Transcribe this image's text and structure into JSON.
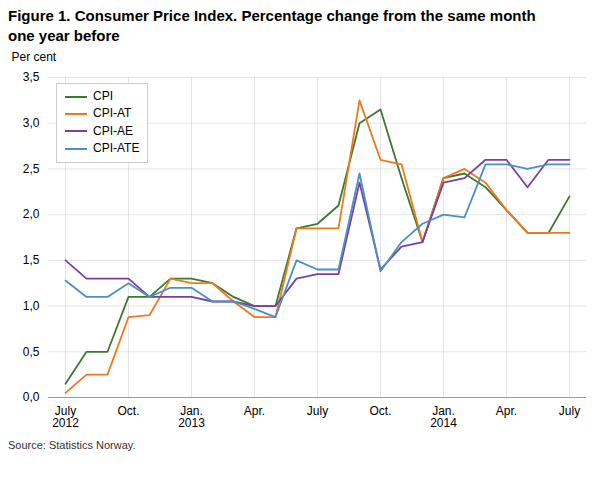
{
  "chart_data": {
    "type": "line",
    "title": "Figure 1. Consumer Price Index. Percentage change from the same month\none year before",
    "ylabel": "Per cent",
    "source": "Source: Statistics Norway.",
    "categories": [
      "July\n2012",
      null,
      null,
      "Oct.",
      null,
      null,
      "Jan.\n2013",
      null,
      null,
      "Apr.",
      null,
      null,
      "July",
      null,
      null,
      "Oct.",
      null,
      null,
      "Jan.\n2014",
      null,
      null,
      "Apr.",
      null,
      null,
      "July"
    ],
    "series": [
      {
        "name": "CPI",
        "color": "#3a7a2f",
        "values": [
          0.15,
          0.5,
          0.5,
          1.1,
          1.1,
          1.3,
          1.3,
          1.25,
          1.1,
          1.0,
          1.0,
          1.85,
          1.9,
          2.1,
          3.0,
          3.15,
          2.4,
          1.7,
          2.4,
          2.45,
          2.3,
          2.05,
          1.8,
          1.8,
          2.2
        ]
      },
      {
        "name": "CPI-AT",
        "color": "#f07820",
        "values": [
          0.05,
          0.25,
          0.25,
          0.88,
          0.9,
          1.3,
          1.25,
          1.25,
          1.05,
          0.88,
          0.88,
          1.85,
          1.85,
          1.85,
          3.25,
          2.6,
          2.55,
          1.7,
          2.4,
          2.5,
          2.35,
          2.05,
          1.8,
          1.8,
          1.8
        ]
      },
      {
        "name": "CPI-AE",
        "color": "#7b3fa0",
        "values": [
          1.5,
          1.3,
          1.3,
          1.3,
          1.1,
          1.1,
          1.1,
          1.05,
          1.05,
          1.0,
          1.0,
          1.3,
          1.35,
          1.35,
          2.35,
          1.4,
          1.65,
          1.7,
          2.35,
          2.4,
          2.6,
          2.6,
          2.3,
          2.6,
          2.6
        ]
      },
      {
        "name": "CPI-ATE",
        "color": "#4a90c4",
        "values": [
          1.28,
          1.1,
          1.1,
          1.25,
          1.1,
          1.2,
          1.2,
          1.05,
          1.05,
          0.97,
          0.88,
          1.5,
          1.4,
          1.4,
          2.45,
          1.38,
          1.7,
          1.9,
          2.0,
          1.97,
          2.55,
          2.55,
          2.5,
          2.55,
          2.55
        ]
      }
    ],
    "ylim": [
      0.0,
      3.5
    ],
    "yticks": [
      {
        "value": 0.0,
        "label": "0,0"
      },
      {
        "value": 0.5,
        "label": "0,5"
      },
      {
        "value": 1.0,
        "label": "1,0"
      },
      {
        "value": 1.5,
        "label": "1,5"
      },
      {
        "value": 2.0,
        "label": "2,0"
      },
      {
        "value": 2.5,
        "label": "2,5"
      },
      {
        "value": 3.0,
        "label": "3,0"
      },
      {
        "value": 3.5,
        "label": "3,5"
      }
    ],
    "grid": true,
    "legend": "upper left"
  }
}
